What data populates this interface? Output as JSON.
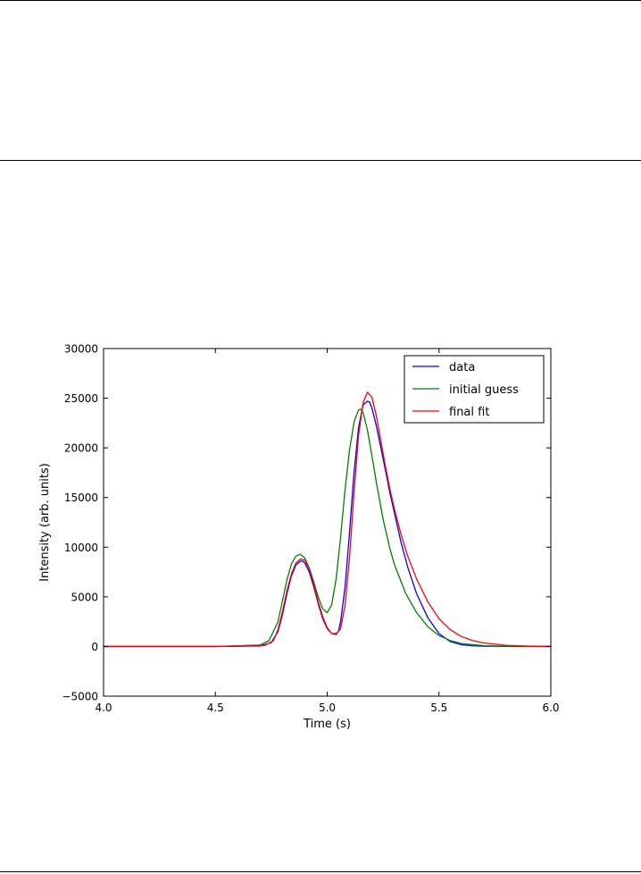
{
  "chart_data": {
    "type": "line",
    "title": "",
    "xlabel": "Time (s)",
    "ylabel": "Intensity (arb. units)",
    "xlim": [
      4.0,
      6.0
    ],
    "ylim": [
      -5000,
      30000
    ],
    "x_ticks": [
      4.0,
      4.5,
      5.0,
      5.5,
      6.0
    ],
    "x_tick_labels": [
      "4.0",
      "4.5",
      "5.0",
      "5.5",
      "6.0"
    ],
    "y_ticks": [
      -5000,
      0,
      5000,
      10000,
      15000,
      20000,
      25000,
      30000
    ],
    "y_tick_labels": [
      "−5000",
      "0",
      "5000",
      "10000",
      "15000",
      "20000",
      "25000",
      "30000"
    ],
    "grid": false,
    "legend_position": "top-right",
    "series": [
      {
        "name": "data",
        "color": "#0000ff",
        "x": [
          4.0,
          4.5,
          4.7,
          4.75,
          4.78,
          4.8,
          4.82,
          4.84,
          4.86,
          4.88,
          4.89,
          4.9,
          4.92,
          4.94,
          4.96,
          4.98,
          5.0,
          5.02,
          5.04,
          5.05,
          5.06,
          5.08,
          5.1,
          5.12,
          5.14,
          5.16,
          5.18,
          5.19,
          5.2,
          5.22,
          5.24,
          5.26,
          5.28,
          5.3,
          5.33,
          5.36,
          5.4,
          5.45,
          5.5,
          5.55,
          5.6,
          5.65,
          5.7,
          5.8,
          5.9,
          6.0
        ],
        "y": [
          0,
          0,
          50,
          400,
          1500,
          3200,
          5300,
          7100,
          8200,
          8600,
          8600,
          8400,
          7500,
          6000,
          4300,
          2800,
          1800,
          1300,
          1300,
          1500,
          2500,
          6000,
          11500,
          17500,
          22000,
          24300,
          24700,
          24600,
          24000,
          22200,
          20000,
          17800,
          15500,
          13500,
          10500,
          8000,
          5300,
          2900,
          1300,
          500,
          180,
          70,
          30,
          5,
          0,
          0
        ]
      },
      {
        "name": "initial guess",
        "color": "#008000",
        "x": [
          4.0,
          4.5,
          4.7,
          4.74,
          4.78,
          4.8,
          4.82,
          4.84,
          4.86,
          4.88,
          4.9,
          4.92,
          4.94,
          4.96,
          4.98,
          5.0,
          5.02,
          5.04,
          5.06,
          5.08,
          5.1,
          5.12,
          5.14,
          5.15,
          5.16,
          5.18,
          5.2,
          5.22,
          5.25,
          5.28,
          5.3,
          5.35,
          5.4,
          5.45,
          5.5,
          5.55,
          5.6,
          5.7,
          5.8,
          6.0
        ],
        "y": [
          0,
          0,
          150,
          600,
          2500,
          4600,
          6700,
          8300,
          9100,
          9300,
          8900,
          7900,
          6500,
          5000,
          3800,
          3400,
          4200,
          6800,
          11000,
          15800,
          19800,
          22600,
          23800,
          23900,
          23600,
          21800,
          19200,
          16500,
          12800,
          9900,
          8300,
          5400,
          3400,
          2000,
          1100,
          600,
          300,
          80,
          20,
          0
        ]
      },
      {
        "name": "final fit",
        "color": "#ff0000",
        "x": [
          4.0,
          4.5,
          4.72,
          4.76,
          4.78,
          4.8,
          4.82,
          4.84,
          4.86,
          4.88,
          4.9,
          4.92,
          4.94,
          4.96,
          4.98,
          5.0,
          5.02,
          5.04,
          5.06,
          5.08,
          5.1,
          5.12,
          5.14,
          5.16,
          5.18,
          5.2,
          5.22,
          5.24,
          5.26,
          5.28,
          5.3,
          5.33,
          5.36,
          5.4,
          5.45,
          5.5,
          5.55,
          5.6,
          5.65,
          5.7,
          5.8,
          5.9,
          6.0
        ],
        "y": [
          0,
          0,
          100,
          600,
          1700,
          3500,
          5600,
          7300,
          8400,
          8800,
          8700,
          7800,
          6300,
          4500,
          3000,
          1900,
          1300,
          1200,
          1800,
          4200,
          9000,
          15500,
          21200,
          24500,
          25600,
          25100,
          23200,
          20700,
          18200,
          15900,
          13900,
          11300,
          9100,
          6800,
          4500,
          2800,
          1700,
          1000,
          600,
          350,
          120,
          40,
          10
        ]
      }
    ]
  }
}
